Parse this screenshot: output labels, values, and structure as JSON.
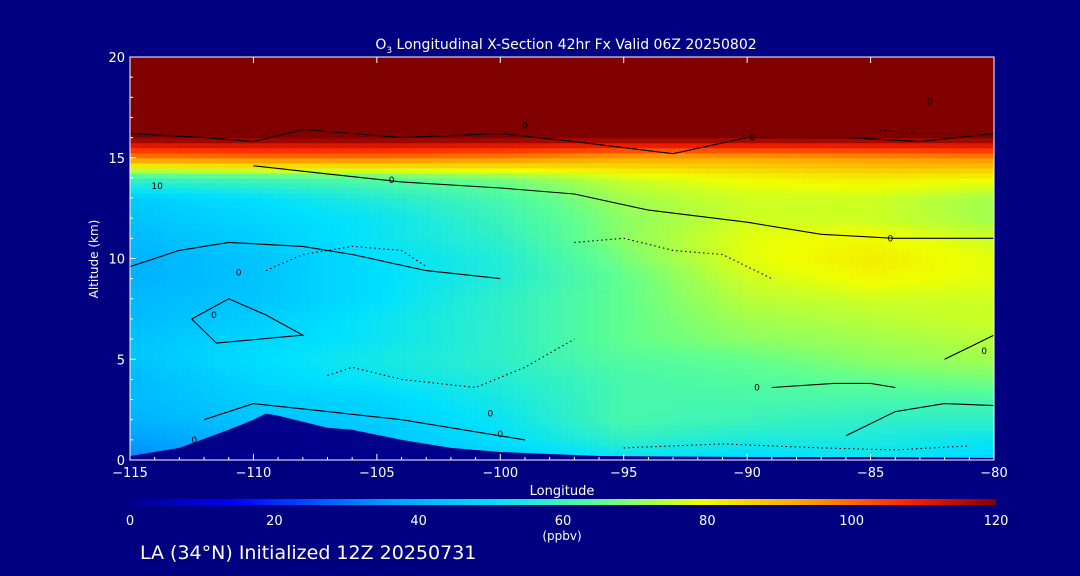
{
  "chart_data": {
    "type": "heatmap",
    "title": "O3 Longitudinal X-Section 42hr  Fx Valid 06Z 20250802",
    "title_main": "O",
    "title_sub": "3",
    "title_rest": " Longitudinal X-Section 42hr  Fx Valid 06Z 20250802",
    "xlabel": "Longitude",
    "ylabel": "Altitude (km)",
    "xlim": [
      -115,
      -80
    ],
    "ylim": [
      0,
      20
    ],
    "x_ticks": [
      -115,
      -110,
      -105,
      -100,
      -95,
      -90,
      -85,
      -80
    ],
    "x_tick_labels": [
      "−115",
      "−110",
      "−105",
      "−100",
      "−95",
      "−90",
      "−85",
      "−80"
    ],
    "y_ticks": [
      0,
      5,
      10,
      15,
      20
    ],
    "y_tick_labels": [
      "0",
      "5",
      "10",
      "15",
      "20"
    ],
    "colorbar": {
      "min": 0,
      "max": 120,
      "ticks": [
        0,
        20,
        40,
        60,
        80,
        100,
        120
      ],
      "tick_labels": [
        "0",
        "20",
        "40",
        "60",
        "80",
        "100",
        "120"
      ],
      "units": "(ppbv)"
    },
    "field_longitudes": [
      -115,
      -110,
      -105,
      -100,
      -95,
      -90,
      -85,
      -80
    ],
    "field_altitudes": [
      0,
      1,
      2,
      3,
      4,
      5,
      6,
      7,
      8,
      9,
      10,
      11,
      12,
      13,
      14,
      15,
      16,
      17,
      18,
      19,
      20
    ],
    "field_values_ppbv": [
      [
        32,
        38,
        42,
        45,
        50,
        48,
        52,
        48
      ],
      [
        36,
        40,
        44,
        50,
        58,
        55,
        55,
        52
      ],
      [
        40,
        44,
        46,
        52,
        62,
        60,
        58,
        58
      ],
      [
        42,
        46,
        48,
        54,
        62,
        62,
        62,
        62
      ],
      [
        42,
        48,
        52,
        56,
        62,
        64,
        66,
        68
      ],
      [
        44,
        50,
        54,
        58,
        64,
        66,
        70,
        72
      ],
      [
        44,
        48,
        52,
        58,
        66,
        70,
        72,
        74
      ],
      [
        42,
        46,
        52,
        58,
        66,
        72,
        74,
        76
      ],
      [
        42,
        44,
        50,
        58,
        66,
        74,
        76,
        76
      ],
      [
        40,
        44,
        50,
        56,
        66,
        76,
        80,
        78
      ],
      [
        40,
        44,
        50,
        56,
        68,
        78,
        82,
        78
      ],
      [
        42,
        46,
        52,
        58,
        70,
        78,
        80,
        76
      ],
      [
        44,
        48,
        52,
        60,
        70,
        76,
        76,
        72
      ],
      [
        46,
        50,
        56,
        62,
        72,
        76,
        76,
        72
      ],
      [
        60,
        62,
        64,
        68,
        76,
        80,
        82,
        80
      ],
      [
        96,
        98,
        98,
        96,
        92,
        92,
        94,
        96
      ],
      [
        120,
        120,
        120,
        120,
        120,
        120,
        120,
        120
      ],
      [
        120,
        120,
        120,
        120,
        120,
        120,
        120,
        120
      ],
      [
        120,
        120,
        120,
        120,
        120,
        120,
        120,
        120
      ],
      [
        120,
        120,
        120,
        120,
        120,
        120,
        120,
        120
      ],
      [
        120,
        120,
        120,
        120,
        120,
        120,
        120,
        120
      ]
    ],
    "terrain_longitudes": [
      -115,
      -113,
      -111,
      -110,
      -109.5,
      -109,
      -108,
      -107,
      -106,
      -104,
      -102,
      -100,
      -98,
      -96,
      -90,
      -85,
      -80
    ],
    "terrain_altitudes_km": [
      0.2,
      0.6,
      1.5,
      2.0,
      2.3,
      2.2,
      1.9,
      1.6,
      1.5,
      1.0,
      0.6,
      0.4,
      0.3,
      0.2,
      0.15,
      0.15,
      0.1
    ],
    "contours": [
      {
        "style": "solid",
        "lon": [
          -115,
          -112,
          -110,
          -108,
          -104,
          -100,
          -97,
          -93,
          -90,
          -86,
          -83,
          -80
        ],
        "alt": [
          16.2,
          16.0,
          15.8,
          16.4,
          16.0,
          16.2,
          15.8,
          15.2,
          16.0,
          16.0,
          15.8,
          16.2
        ]
      },
      {
        "style": "solid",
        "lon": [
          -110,
          -107,
          -104,
          -100,
          -97,
          -94,
          -90,
          -87,
          -84,
          -81,
          -80
        ],
        "alt": [
          14.6,
          14.2,
          13.8,
          13.5,
          13.2,
          12.4,
          11.8,
          11.2,
          11.0,
          11.0,
          11.0
        ]
      },
      {
        "style": "solid",
        "lon": [
          -115,
          -113,
          -111,
          -108,
          -106,
          -103,
          -100
        ],
        "alt": [
          9.6,
          10.4,
          10.8,
          10.6,
          10.2,
          9.4,
          9.0
        ]
      },
      {
        "style": "solid",
        "lon": [
          -112.5,
          -111,
          -109.5,
          -108,
          -111.5,
          -112.5
        ],
        "alt": [
          7.0,
          8.0,
          7.2,
          6.2,
          5.8,
          7.0
        ]
      },
      {
        "style": "solid",
        "lon": [
          -112,
          -110,
          -107,
          -104,
          -101,
          -99
        ],
        "alt": [
          2.0,
          2.8,
          2.4,
          2.0,
          1.4,
          1.0
        ]
      },
      {
        "style": "solid",
        "lon": [
          -89,
          -86.5,
          -85,
          -84
        ],
        "alt": [
          3.6,
          3.8,
          3.8,
          3.6
        ]
      },
      {
        "style": "solid",
        "lon": [
          -86,
          -84,
          -82,
          -80
        ],
        "alt": [
          1.2,
          2.4,
          2.8,
          2.7
        ]
      },
      {
        "style": "solid",
        "lon": [
          -82,
          -81,
          -80
        ],
        "alt": [
          5.0,
          5.6,
          6.2
        ]
      },
      {
        "style": "dotted",
        "lon": [
          -109.5,
          -108,
          -106,
          -104,
          -103
        ],
        "alt": [
          9.4,
          10.2,
          10.6,
          10.4,
          9.6
        ]
      },
      {
        "style": "dotted",
        "lon": [
          -107,
          -106,
          -104,
          -101,
          -99,
          -97
        ],
        "alt": [
          4.2,
          4.6,
          4.0,
          3.6,
          4.6,
          6.0
        ]
      },
      {
        "style": "dotted",
        "lon": [
          -97,
          -95,
          -93,
          -91,
          -89
        ],
        "alt": [
          10.8,
          11.0,
          10.4,
          10.2,
          9.0
        ]
      },
      {
        "style": "dotted",
        "lon": [
          -95,
          -91,
          -87,
          -84,
          -81
        ],
        "alt": [
          0.6,
          0.8,
          0.6,
          0.5,
          0.7
        ]
      },
      {
        "style": "dotted",
        "lon": [
          -85,
          -83,
          -81
        ],
        "alt": [
          16.4,
          16.2,
          16.2
        ]
      }
    ],
    "contour_labels": [
      {
        "text": "10",
        "lon": -113.9,
        "alt": 13.6
      },
      {
        "text": "0",
        "lon": -110.6,
        "alt": 9.3
      },
      {
        "text": "0",
        "lon": -111.6,
        "alt": 7.2
      },
      {
        "text": "0",
        "lon": -112.4,
        "alt": 1.0
      },
      {
        "text": "0",
        "lon": -104.4,
        "alt": 13.9
      },
      {
        "text": "0",
        "lon": -99.0,
        "alt": 16.6
      },
      {
        "text": "0",
        "lon": -100.4,
        "alt": 2.3
      },
      {
        "text": "0",
        "lon": -100.0,
        "alt": 1.3
      },
      {
        "text": "0",
        "lon": -89.8,
        "alt": 16.0
      },
      {
        "text": "0",
        "lon": -84.2,
        "alt": 11.0
      },
      {
        "text": "0",
        "lon": -82.6,
        "alt": 17.8
      },
      {
        "text": "0",
        "lon": -89.6,
        "alt": 3.6
      },
      {
        "text": "0",
        "lon": -80.4,
        "alt": 5.4
      }
    ]
  },
  "footer": {
    "text": "LA (34°N) Initialized 12Z 20250731"
  },
  "colors": {
    "background": "#000080",
    "text": "#ffffff",
    "contour": "#000000",
    "terrain": "#00008b"
  }
}
